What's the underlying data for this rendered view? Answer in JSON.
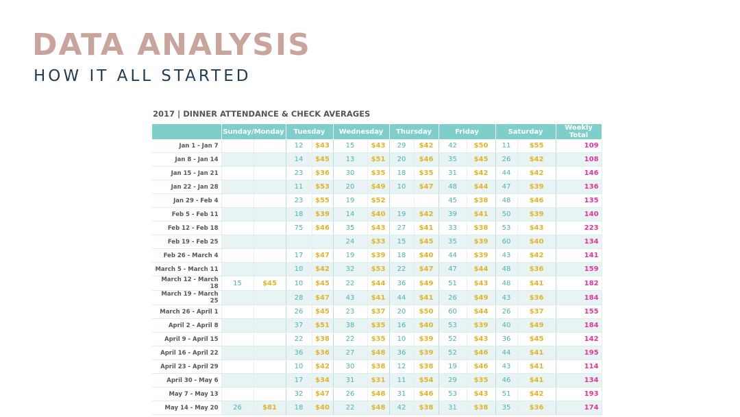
{
  "header": {
    "title": "DATA ANALYSIS",
    "subtitle": "HOW IT ALL STARTED"
  },
  "colors": {
    "title": "#c9a49c",
    "subtitle": "#1f3b57",
    "header_bg": "#7ecfcb",
    "attendance": "#4bb3ae",
    "check": "#e3b42b",
    "total": "#e8339a"
  },
  "table": {
    "title": "2017 | DINNER ATTENDANCE & CHECK AVERAGES",
    "columns": [
      "",
      "Sunday/Monday",
      "Tuesday",
      "Wednesday",
      "Thursday",
      "Friday",
      "Saturday",
      "Weekly Total"
    ],
    "rows": [
      {
        "week": "Jan 1 - Jan 7",
        "cells": [
          "",
          "",
          "12",
          "$43",
          "15",
          "$43",
          "29",
          "$42",
          "42",
          "$50",
          "11",
          "$55"
        ],
        "total": "109"
      },
      {
        "week": "Jan 8 - Jan 14",
        "cells": [
          "",
          "",
          "14",
          "$45",
          "13",
          "$51",
          "20",
          "$46",
          "35",
          "$45",
          "26",
          "$42"
        ],
        "total": "108"
      },
      {
        "week": "Jan 15 - Jan 21",
        "cells": [
          "",
          "",
          "23",
          "$36",
          "30",
          "$35",
          "18",
          "$35",
          "31",
          "$42",
          "44",
          "$42"
        ],
        "total": "146"
      },
      {
        "week": "Jan 22 - Jan 28",
        "cells": [
          "",
          "",
          "11",
          "$53",
          "20",
          "$49",
          "10",
          "$47",
          "48",
          "$44",
          "47",
          "$39"
        ],
        "total": "136"
      },
      {
        "week": "Jan 29 - Feb 4",
        "cells": [
          "",
          "",
          "23",
          "$55",
          "19",
          "$52",
          "",
          "",
          "45",
          "$38",
          "48",
          "$46"
        ],
        "total": "135"
      },
      {
        "week": "Feb 5 - Feb 11",
        "cells": [
          "",
          "",
          "18",
          "$39",
          "14",
          "$40",
          "19",
          "$42",
          "39",
          "$41",
          "50",
          "$39"
        ],
        "total": "140"
      },
      {
        "week": "Feb 12 - Feb 18",
        "cells": [
          "",
          "",
          "75",
          "$46",
          "35",
          "$43",
          "27",
          "$41",
          "33",
          "$38",
          "53",
          "$43"
        ],
        "total": "223"
      },
      {
        "week": "Feb 19 - Feb 25",
        "cells": [
          "",
          "",
          "",
          "",
          "24",
          "$33",
          "15",
          "$45",
          "35",
          "$39",
          "60",
          "$40"
        ],
        "total": "134"
      },
      {
        "week": "Feb 26 - March 4",
        "cells": [
          "",
          "",
          "17",
          "$47",
          "19",
          "$39",
          "18",
          "$40",
          "44",
          "$39",
          "43",
          "$42"
        ],
        "total": "141"
      },
      {
        "week": "March 5 - March 11",
        "cells": [
          "",
          "",
          "10",
          "$42",
          "32",
          "$53",
          "22",
          "$47",
          "47",
          "$44",
          "48",
          "$36"
        ],
        "total": "159"
      },
      {
        "week": "March 12 - March 18",
        "cells": [
          "15",
          "$45",
          "10",
          "$45",
          "22",
          "$44",
          "36",
          "$49",
          "51",
          "$43",
          "48",
          "$41"
        ],
        "total": "182"
      },
      {
        "week": "March 19 - March 25",
        "cells": [
          "",
          "",
          "28",
          "$47",
          "43",
          "$41",
          "44",
          "$41",
          "26",
          "$49",
          "43",
          "$36"
        ],
        "total": "184"
      },
      {
        "week": "March 26 - April 1",
        "cells": [
          "",
          "",
          "26",
          "$45",
          "23",
          "$37",
          "20",
          "$50",
          "60",
          "$44",
          "26",
          "$37"
        ],
        "total": "155"
      },
      {
        "week": "April 2 - April 8",
        "cells": [
          "",
          "",
          "37",
          "$51",
          "38",
          "$35",
          "16",
          "$40",
          "53",
          "$39",
          "40",
          "$49"
        ],
        "total": "184"
      },
      {
        "week": "April 9 - April 15",
        "cells": [
          "",
          "",
          "22",
          "$38",
          "22",
          "$35",
          "10",
          "$39",
          "52",
          "$43",
          "36",
          "$45"
        ],
        "total": "142"
      },
      {
        "week": "April 16 - April 22",
        "cells": [
          "",
          "",
          "36",
          "$36",
          "27",
          "$48",
          "36",
          "$39",
          "52",
          "$46",
          "44",
          "$41"
        ],
        "total": "195"
      },
      {
        "week": "April 23 - April 29",
        "cells": [
          "",
          "",
          "10",
          "$42",
          "30",
          "$38",
          "12",
          "$38",
          "19",
          "$46",
          "43",
          "$41"
        ],
        "total": "114"
      },
      {
        "week": "April 30 - May 6",
        "cells": [
          "",
          "",
          "17",
          "$34",
          "31",
          "$31",
          "11",
          "$54",
          "29",
          "$35",
          "46",
          "$41"
        ],
        "total": "134"
      },
      {
        "week": "May 7 - May 13",
        "cells": [
          "",
          "",
          "32",
          "$47",
          "26",
          "$48",
          "31",
          "$46",
          "53",
          "$43",
          "51",
          "$42"
        ],
        "total": "193"
      },
      {
        "week": "May 14 - May 20",
        "cells": [
          "26",
          "$81",
          "18",
          "$40",
          "22",
          "$48",
          "42",
          "$38",
          "31",
          "$38",
          "35",
          "$36"
        ],
        "total": "174"
      }
    ]
  }
}
